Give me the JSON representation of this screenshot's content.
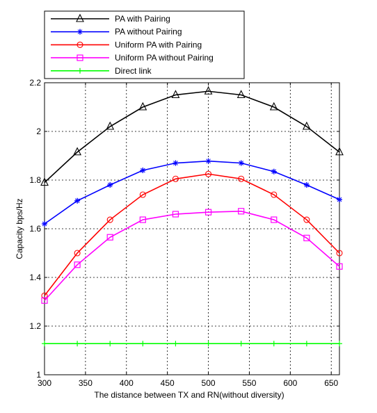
{
  "chart_data": {
    "type": "line",
    "title": "",
    "xlabel": "The distance between TX and RN(without diversity)",
    "ylabel": "Capacity bps/Hz",
    "xlim": [
      300,
      660
    ],
    "ylim": [
      1,
      2.2
    ],
    "xticks": [
      300,
      350,
      400,
      450,
      500,
      550,
      600,
      650
    ],
    "yticks": [
      1,
      1.2,
      1.4,
      1.6,
      1.8,
      2,
      2.2
    ],
    "xtick_labels": [
      "300",
      "350",
      "400",
      "450",
      "500",
      "550",
      "600",
      "650"
    ],
    "ytick_labels": [
      "1",
      "1.2",
      "1.4",
      "1.6",
      "1.8",
      "2",
      "2.2"
    ],
    "grid": true,
    "legend_position": "top (outside plot area)",
    "x": [
      300,
      340,
      380,
      420,
      460,
      500,
      540,
      580,
      620,
      660
    ],
    "series": [
      {
        "name": "PA with Pairing",
        "color": "#000000",
        "marker": "triangle",
        "values": [
          1.79,
          1.915,
          2.02,
          2.1,
          2.15,
          2.165,
          2.15,
          2.1,
          2.02,
          1.915
        ]
      },
      {
        "name": "PA without Pairing",
        "color": "#0000ff",
        "marker": "star",
        "values": [
          1.62,
          1.715,
          1.78,
          1.84,
          1.87,
          1.878,
          1.87,
          1.835,
          1.78,
          1.72
        ]
      },
      {
        "name": "Uniform PA with Pairing",
        "color": "#ff0000",
        "marker": "circle",
        "values": [
          1.325,
          1.5,
          1.637,
          1.74,
          1.805,
          1.825,
          1.805,
          1.74,
          1.637,
          1.5
        ]
      },
      {
        "name": "Uniform PA without Pairing",
        "color": "#ff00ff",
        "marker": "square",
        "values": [
          1.305,
          1.452,
          1.565,
          1.637,
          1.66,
          1.668,
          1.672,
          1.637,
          1.562,
          1.445
        ]
      },
      {
        "name": "Direct link",
        "color": "#00ff00",
        "marker": "plus",
        "values": [
          1.128,
          1.128,
          1.128,
          1.128,
          1.128,
          1.128,
          1.128,
          1.128,
          1.128,
          1.128
        ]
      }
    ]
  }
}
